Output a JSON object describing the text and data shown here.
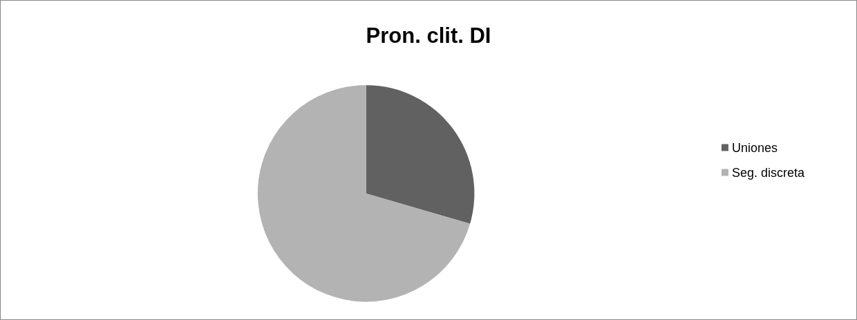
{
  "chart_data": {
    "type": "pie",
    "title": "Pron. clit. DI",
    "categories": [
      "Uniones",
      "Seg. discreta"
    ],
    "values": [
      29.5,
      70.5
    ],
    "colors": [
      "#616161",
      "#b3b3b3"
    ],
    "legend": "right"
  }
}
